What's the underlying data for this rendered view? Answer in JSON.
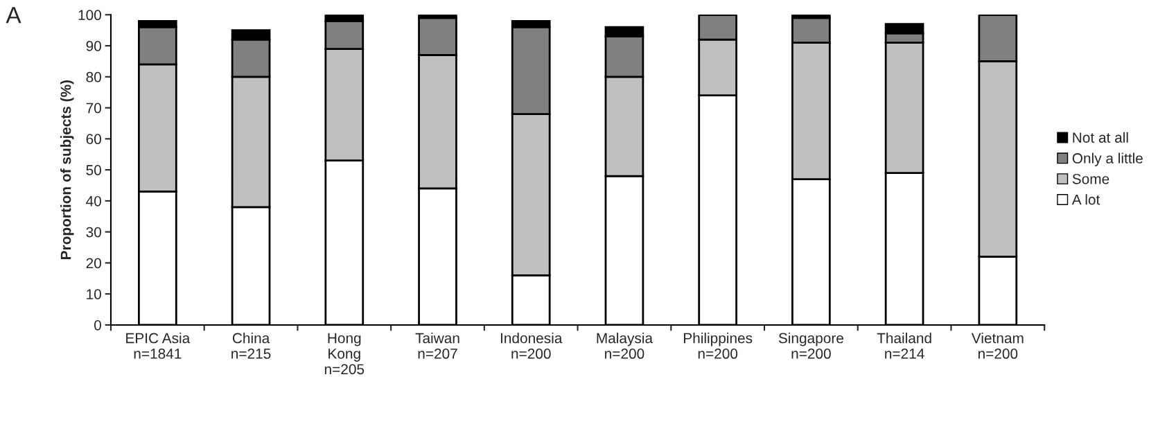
{
  "chart_data": {
    "type": "bar",
    "stacked": true,
    "ylabel": "Proportion of subjects (%)",
    "annotations": [
      "A"
    ],
    "categories": [
      "EPIC Asia\nn=1841",
      "China\nn=215",
      "Hong\nKong\nn=205",
      "Taiwan\nn=207",
      "Indonesia\nn=200",
      "Malaysia\nn=200",
      "Philippines\nn=200",
      "Singapore\nn=200",
      "Thailand\nn=214",
      "Vietnam\nn=200"
    ],
    "series": [
      {
        "name": "A lot",
        "color": "#ffffff",
        "values": [
          43,
          38,
          53,
          44,
          16,
          48,
          74,
          47,
          49,
          22
        ]
      },
      {
        "name": "Some",
        "color": "#c0c0c0",
        "values": [
          41,
          42,
          36,
          43,
          52,
          32,
          18,
          44,
          42,
          63
        ]
      },
      {
        "name": "Only a little",
        "color": "#808080",
        "values": [
          12,
          12,
          9,
          12,
          28,
          13,
          8,
          8,
          3,
          15
        ]
      },
      {
        "name": "Not at all",
        "color": "#000000",
        "values": [
          2,
          3,
          2,
          1,
          2,
          3,
          0,
          1,
          3,
          0
        ]
      }
    ],
    "ylim": [
      0,
      100
    ],
    "yticks": [
      0,
      10,
      20,
      30,
      40,
      50,
      60,
      70,
      80,
      90,
      100
    ],
    "grid": false,
    "legend": "right"
  }
}
